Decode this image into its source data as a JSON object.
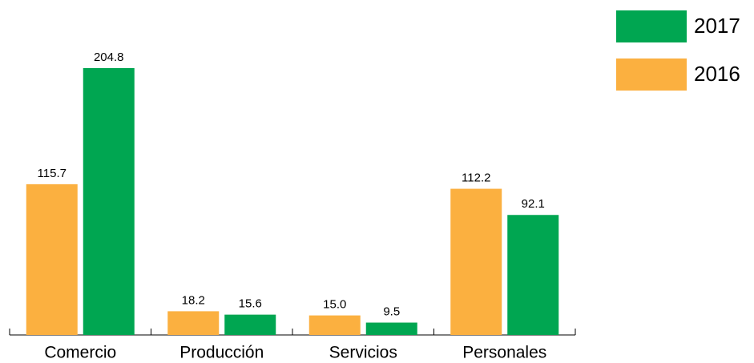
{
  "chart_data": {
    "type": "bar",
    "categories": [
      "Comercio",
      "Producción",
      "Servicios",
      "Personales"
    ],
    "series": [
      {
        "name": "2016",
        "color": "#fbb040",
        "values": [
          115.7,
          18.2,
          15.0,
          112.2
        ],
        "value_labels": [
          "115.7",
          "18.2",
          "15.0",
          "112.2"
        ]
      },
      {
        "name": "2017",
        "color": "#00a651",
        "values": [
          204.8,
          15.6,
          9.5,
          92.1
        ],
        "value_labels": [
          "204.8",
          "15.6",
          "9.5",
          "92.1"
        ]
      }
    ],
    "legend": "top-right"
  }
}
